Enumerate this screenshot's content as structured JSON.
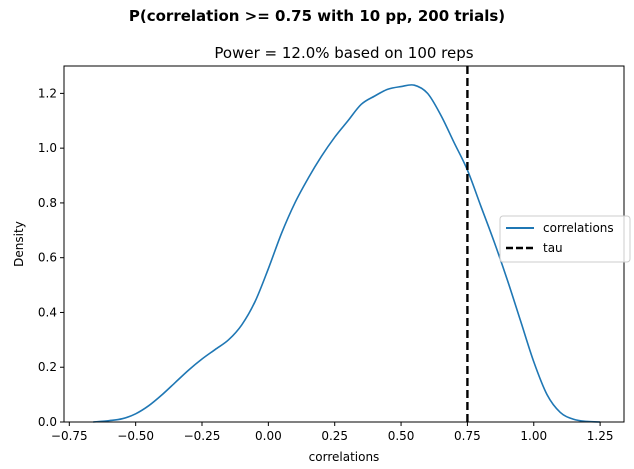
{
  "chart_data": {
    "type": "line",
    "suptitle": "P(correlation >= 0.75 with 10 pp, 200 trials)",
    "title": "Power = 12.0% based on 100 reps",
    "xlabel": "correlations",
    "ylabel": "Density",
    "xlim": [
      -0.77,
      1.34
    ],
    "ylim": [
      0,
      1.3
    ],
    "xticks": [
      -0.75,
      -0.5,
      -0.25,
      0.0,
      0.25,
      0.5,
      0.75,
      1.0,
      1.25
    ],
    "xtick_labels": [
      "−0.75",
      "−0.50",
      "−0.25",
      "0.00",
      "0.25",
      "0.50",
      "0.75",
      "1.00",
      "1.25"
    ],
    "yticks": [
      0.0,
      0.2,
      0.4,
      0.6,
      0.8,
      1.0,
      1.2
    ],
    "ytick_labels": [
      "0.0",
      "0.2",
      "0.4",
      "0.6",
      "0.8",
      "1.0",
      "1.2"
    ],
    "grid": false,
    "legend": {
      "position": "center-right",
      "entries": [
        "correlations",
        "tau"
      ]
    },
    "series": [
      {
        "name": "correlations",
        "style": "solid",
        "color": "#1f77b4",
        "x": [
          -0.66,
          -0.6,
          -0.55,
          -0.5,
          -0.45,
          -0.4,
          -0.35,
          -0.3,
          -0.25,
          -0.2,
          -0.15,
          -0.1,
          -0.05,
          0.0,
          0.05,
          0.1,
          0.15,
          0.2,
          0.25,
          0.3,
          0.35,
          0.4,
          0.45,
          0.5,
          0.55,
          0.6,
          0.65,
          0.7,
          0.75,
          0.8,
          0.85,
          0.9,
          0.95,
          1.0,
          1.05,
          1.1,
          1.15,
          1.2,
          1.25
        ],
        "y": [
          0.0,
          0.005,
          0.012,
          0.03,
          0.06,
          0.1,
          0.145,
          0.19,
          0.23,
          0.265,
          0.3,
          0.355,
          0.44,
          0.56,
          0.69,
          0.8,
          0.89,
          0.97,
          1.04,
          1.1,
          1.16,
          1.19,
          1.215,
          1.225,
          1.23,
          1.2,
          1.12,
          1.02,
          0.92,
          0.79,
          0.66,
          0.52,
          0.37,
          0.22,
          0.1,
          0.035,
          0.01,
          0.002,
          0.0
        ]
      },
      {
        "name": "tau",
        "style": "dashed",
        "color": "#000000",
        "x_value": 0.75
      }
    ]
  }
}
